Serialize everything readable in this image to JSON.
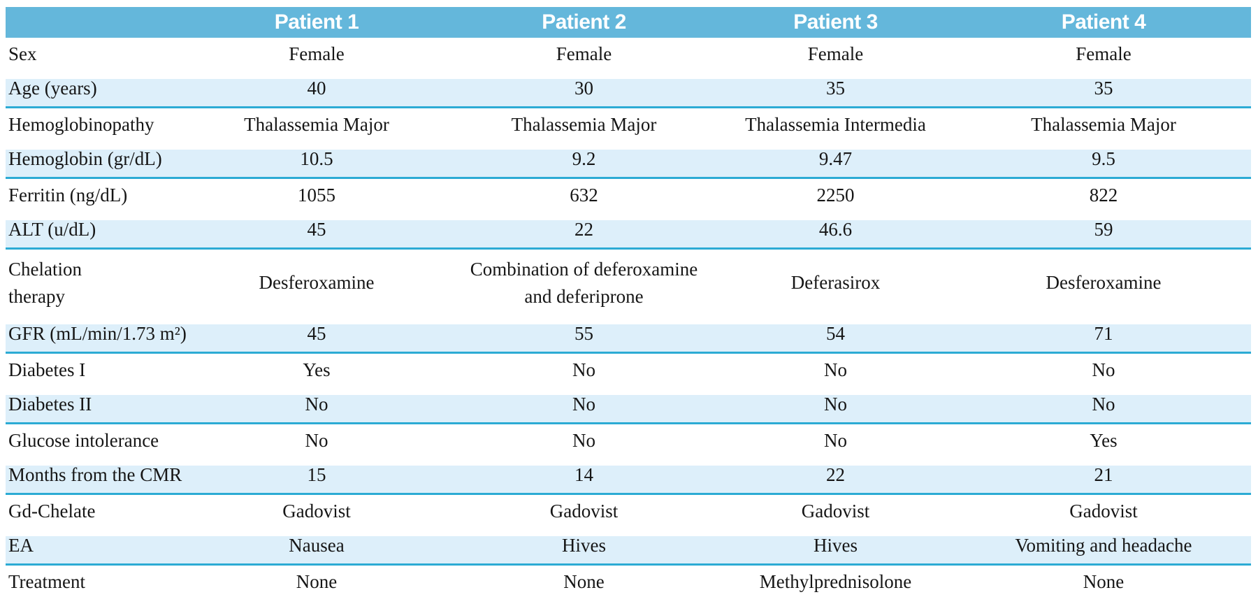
{
  "table": {
    "columns": [
      "",
      "Patient 1",
      "Patient 2",
      "Patient 3",
      "Patient 4"
    ],
    "rows": [
      {
        "label": "Sex",
        "values": [
          "Female",
          "Female",
          "Female",
          "Female"
        ]
      },
      {
        "label": "Age (years)",
        "values": [
          "40",
          "30",
          "35",
          "35"
        ]
      },
      {
        "label": "Hemoglobinopathy",
        "values": [
          "Thalassemia Major",
          "Thalassemia Major",
          "Thalassemia Intermedia",
          "Thalassemia Major"
        ]
      },
      {
        "label": "Hemoglobin (gr/dL)",
        "values": [
          "10.5",
          "9.2",
          "9.47",
          "9.5"
        ]
      },
      {
        "label": "Ferritin (ng/dL)",
        "values": [
          "1055",
          "632",
          "2250",
          "822"
        ]
      },
      {
        "label": "ALT (u/dL)",
        "values": [
          "45",
          "22",
          "46.6",
          "59"
        ]
      },
      {
        "label": "Chelation\ntherapy",
        "values": [
          "Desferoxamine",
          "Combination of deferoxamine\nand deferiprone",
          "Deferasirox",
          "Desferoxamine"
        ]
      },
      {
        "label": "GFR (mL/min/1.73 m²)",
        "values": [
          "45",
          "55",
          "54",
          "71"
        ]
      },
      {
        "label": "Diabetes I",
        "values": [
          "Yes",
          "No",
          "No",
          "No"
        ]
      },
      {
        "label": "Diabetes II",
        "values": [
          "No",
          "No",
          "No",
          "No"
        ]
      },
      {
        "label": "Glucose intolerance",
        "values": [
          "No",
          "No",
          "No",
          "Yes"
        ]
      },
      {
        "label": "Months from the CMR",
        "values": [
          "15",
          "14",
          "22",
          "21"
        ]
      },
      {
        "label": "Gd-Chelate",
        "values": [
          "Gadovist",
          "Gadovist",
          "Gadovist",
          "Gadovist"
        ]
      },
      {
        "label": "EA",
        "values": [
          "Nausea",
          "Hives",
          "Hives",
          "Vomiting and headache"
        ]
      },
      {
        "label": "Treatment",
        "values": [
          "None",
          "None",
          "Methylprednisolone",
          "None"
        ]
      }
    ]
  },
  "colors": {
    "header_bg": "#64b7db",
    "header_text": "#ffffff",
    "row_shade": "#ddeffa",
    "row_divider": "#2cabd4",
    "bottom_rule": "#4f4f4f",
    "body_text": "#161616"
  }
}
